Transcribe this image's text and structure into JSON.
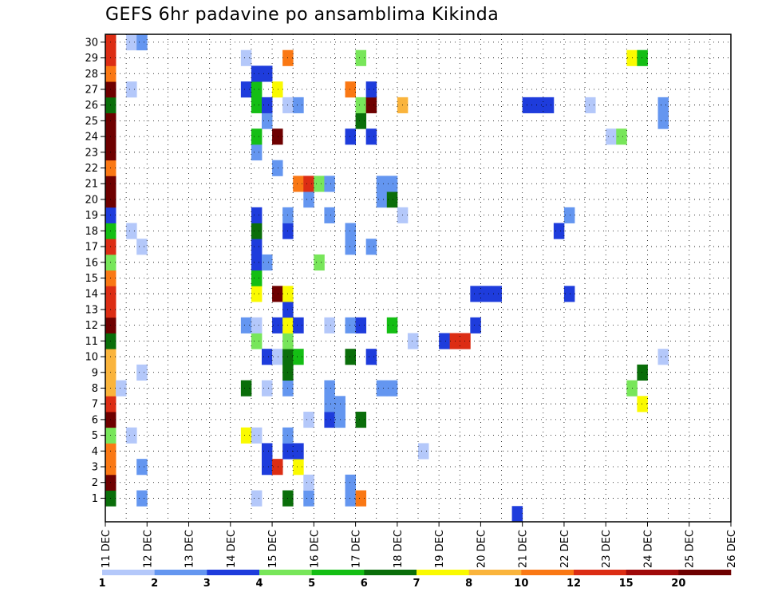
{
  "chart_data": {
    "type": "heatmap",
    "title": "GEFS 6hr padavine po ansamblima Kikinda",
    "x_ticks": [
      "11 DEC",
      "12 DEC",
      "13 DEC",
      "14 DEC",
      "15 DEC",
      "16 DEC",
      "17 DEC",
      "18 DEC",
      "19 DEC",
      "20 DEC",
      "21 DEC",
      "22 DEC",
      "23 DEC",
      "24 DEC",
      "25 DEC",
      "26 DEC"
    ],
    "y_ticks": [
      "1",
      "2",
      "3",
      "4",
      "5",
      "6",
      "7",
      "8",
      "9",
      "10",
      "11",
      "12",
      "13",
      "14",
      "15",
      "16",
      "17",
      "18",
      "19",
      "20",
      "21",
      "22",
      "23",
      "24",
      "25",
      "26",
      "27",
      "28",
      "29",
      "30"
    ],
    "colorbar": {
      "bins": [
        {
          "color": "#b4c8fa"
        },
        {
          "color": "#6496f0"
        },
        {
          "color": "#1e3cdc"
        },
        {
          "color": "#78e65a"
        },
        {
          "color": "#14be14"
        },
        {
          "color": "#0a6e0a"
        },
        {
          "color": "#fafa00"
        },
        {
          "color": "#fab43c"
        },
        {
          "color": "#fa7814"
        },
        {
          "color": "#dc2d14"
        },
        {
          "color": "#a00a0a"
        },
        {
          "color": "#6e0000"
        }
      ],
      "labels": [
        "1",
        "2",
        "3",
        "4",
        "5",
        "6",
        "7",
        "8",
        "10",
        "12",
        "15",
        "20"
      ]
    },
    "cells": [
      [
        0,
        1,
        "dg"
      ],
      [
        0,
        2,
        "dr"
      ],
      [
        0,
        3,
        "o"
      ],
      [
        0,
        4,
        "o"
      ],
      [
        0,
        5,
        "lg"
      ],
      [
        0,
        6,
        "dr"
      ],
      [
        0,
        7,
        "r"
      ],
      [
        0,
        8,
        "lo"
      ],
      [
        0,
        9,
        "lo"
      ],
      [
        0,
        10,
        "lo"
      ],
      [
        0,
        11,
        "dg"
      ],
      [
        0,
        12,
        "dr"
      ],
      [
        0,
        13,
        "r"
      ],
      [
        0,
        14,
        "r"
      ],
      [
        0,
        15,
        "o"
      ],
      [
        0,
        16,
        "lg"
      ],
      [
        0,
        17,
        "r"
      ],
      [
        0,
        18,
        "g"
      ],
      [
        0,
        19,
        "b"
      ],
      [
        0,
        20,
        "dr"
      ],
      [
        0,
        21,
        "dr"
      ],
      [
        0,
        22,
        "o"
      ],
      [
        0,
        23,
        "dr"
      ],
      [
        0,
        24,
        "dr"
      ],
      [
        0,
        25,
        "dr"
      ],
      [
        0,
        26,
        "dg"
      ],
      [
        0,
        27,
        "dr"
      ],
      [
        0,
        28,
        "o"
      ],
      [
        0,
        29,
        "r"
      ],
      [
        0,
        30,
        "r"
      ],
      [
        1,
        8,
        "lb"
      ],
      [
        2,
        5,
        "lb"
      ],
      [
        2,
        18,
        "lb"
      ],
      [
        2,
        27,
        "lb"
      ],
      [
        2,
        30,
        "lb"
      ],
      [
        3,
        1,
        "m"
      ],
      [
        3,
        3,
        "m"
      ],
      [
        3,
        9,
        "lb"
      ],
      [
        3,
        17,
        "lb"
      ],
      [
        3,
        30,
        "m"
      ],
      [
        13,
        8,
        "dg"
      ],
      [
        13,
        5,
        "y"
      ],
      [
        13,
        12,
        "m"
      ],
      [
        13,
        27,
        "b"
      ],
      [
        13,
        29,
        "lb"
      ],
      [
        14,
        1,
        "lb"
      ],
      [
        14,
        5,
        "lb"
      ],
      [
        14,
        11,
        "lg"
      ],
      [
        14,
        12,
        "lb"
      ],
      [
        14,
        14,
        "y"
      ],
      [
        14,
        15,
        "g"
      ],
      [
        14,
        16,
        "b"
      ],
      [
        14,
        17,
        "b"
      ],
      [
        14,
        18,
        "dg"
      ],
      [
        14,
        19,
        "b"
      ],
      [
        14,
        23,
        "m"
      ],
      [
        14,
        24,
        "g"
      ],
      [
        14,
        26,
        "g"
      ],
      [
        14,
        27,
        "g"
      ],
      [
        14,
        28,
        "b"
      ],
      [
        15,
        3,
        "b"
      ],
      [
        15,
        4,
        "b"
      ],
      [
        15,
        8,
        "lb"
      ],
      [
        15,
        10,
        "b"
      ],
      [
        15,
        16,
        "m"
      ],
      [
        15,
        25,
        "m"
      ],
      [
        15,
        26,
        "b"
      ],
      [
        15,
        28,
        "b"
      ],
      [
        16,
        3,
        "r"
      ],
      [
        16,
        10,
        "lb"
      ],
      [
        16,
        12,
        "b"
      ],
      [
        16,
        14,
        "dr"
      ],
      [
        16,
        22,
        "m"
      ],
      [
        16,
        24,
        "dr"
      ],
      [
        16,
        27,
        "y"
      ],
      [
        17,
        1,
        "dg"
      ],
      [
        17,
        4,
        "b"
      ],
      [
        17,
        5,
        "m"
      ],
      [
        17,
        8,
        "m"
      ],
      [
        17,
        9,
        "dg"
      ],
      [
        17,
        10,
        "dg"
      ],
      [
        17,
        11,
        "lg"
      ],
      [
        17,
        12,
        "y"
      ],
      [
        17,
        13,
        "b"
      ],
      [
        17,
        14,
        "y"
      ],
      [
        17,
        18,
        "b"
      ],
      [
        17,
        19,
        "m"
      ],
      [
        17,
        26,
        "lb"
      ],
      [
        17,
        29,
        "o"
      ],
      [
        18,
        3,
        "y"
      ],
      [
        18,
        4,
        "b"
      ],
      [
        18,
        10,
        "g"
      ],
      [
        18,
        12,
        "b"
      ],
      [
        18,
        21,
        "o"
      ],
      [
        18,
        26,
        "m"
      ],
      [
        19,
        1,
        "m"
      ],
      [
        19,
        2,
        "lb"
      ],
      [
        19,
        6,
        "lb"
      ],
      [
        19,
        20,
        "m"
      ],
      [
        19,
        21,
        "r"
      ],
      [
        20,
        16,
        "lg"
      ],
      [
        20,
        21,
        "lg"
      ],
      [
        21,
        6,
        "b"
      ],
      [
        21,
        7,
        "m"
      ],
      [
        21,
        8,
        "m"
      ],
      [
        21,
        12,
        "lb"
      ],
      [
        21,
        19,
        "m"
      ],
      [
        21,
        21,
        "m"
      ],
      [
        22,
        6,
        "m"
      ],
      [
        22,
        7,
        "m"
      ],
      [
        23,
        1,
        "m"
      ],
      [
        23,
        2,
        "m"
      ],
      [
        23,
        10,
        "dg"
      ],
      [
        23,
        12,
        "m"
      ],
      [
        23,
        17,
        "m"
      ],
      [
        23,
        18,
        "m"
      ],
      [
        23,
        24,
        "b"
      ],
      [
        23,
        27,
        "o"
      ],
      [
        24,
        1,
        "o"
      ],
      [
        24,
        6,
        "dg"
      ],
      [
        24,
        12,
        "b"
      ],
      [
        24,
        25,
        "dg"
      ],
      [
        24,
        26,
        "lg"
      ],
      [
        24,
        29,
        "lg"
      ],
      [
        25,
        10,
        "b"
      ],
      [
        25,
        17,
        "m"
      ],
      [
        25,
        24,
        "b"
      ],
      [
        25,
        26,
        "dr"
      ],
      [
        25,
        27,
        "b"
      ],
      [
        26,
        8,
        "m"
      ],
      [
        26,
        20,
        "m"
      ],
      [
        26,
        21,
        "m"
      ],
      [
        27,
        8,
        "m"
      ],
      [
        27,
        12,
        "g"
      ],
      [
        27,
        20,
        "dg"
      ],
      [
        27,
        21,
        "m"
      ],
      [
        28,
        19,
        "lb"
      ],
      [
        28,
        26,
        "lo"
      ],
      [
        29,
        11,
        "lb"
      ],
      [
        30,
        4,
        "lb"
      ],
      [
        35,
        12,
        "b"
      ],
      [
        35,
        14,
        "b"
      ],
      [
        37,
        14,
        "b"
      ],
      [
        36,
        14,
        "b"
      ],
      [
        34,
        11,
        "r"
      ],
      [
        33,
        11,
        "r"
      ],
      [
        32,
        11,
        "b"
      ],
      [
        39,
        0,
        "b"
      ],
      [
        41,
        26,
        "b"
      ],
      [
        42,
        26,
        "b"
      ],
      [
        40,
        26,
        "b"
      ],
      [
        43,
        18,
        "b"
      ],
      [
        44,
        14,
        "b"
      ],
      [
        44,
        19,
        "m"
      ],
      [
        46,
        26,
        "lb"
      ],
      [
        48,
        24,
        "lb"
      ],
      [
        49,
        24,
        "lg"
      ],
      [
        50,
        29,
        "y"
      ],
      [
        51,
        29,
        "g"
      ],
      [
        50,
        8,
        "lg"
      ],
      [
        51,
        7,
        "y"
      ],
      [
        51,
        9,
        "dg"
      ],
      [
        53,
        10,
        "lb"
      ],
      [
        53,
        26,
        "m"
      ],
      [
        53,
        25,
        "m"
      ]
    ]
  }
}
